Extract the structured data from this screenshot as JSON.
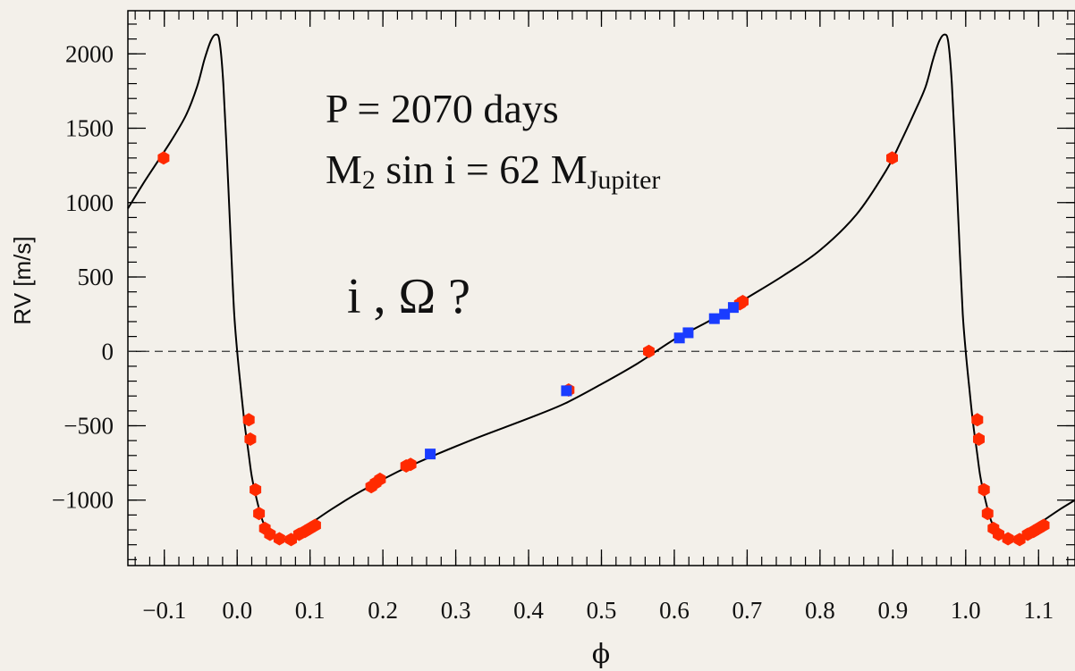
{
  "chart_data": {
    "type": "scatter",
    "xlabel": "ϕ",
    "ylabel": "RV [m/s]",
    "xlim": [
      -0.15,
      1.15
    ],
    "ylim": [
      -1440,
      2290
    ],
    "x_ticks": [
      "−0.1",
      "0.0",
      "0.1",
      "0.2",
      "0.3",
      "0.4",
      "0.5",
      "0.6",
      "0.7",
      "0.8",
      "0.9",
      "1.0",
      "1.1"
    ],
    "x_tick_values": [
      -0.1,
      0.0,
      0.1,
      0.2,
      0.3,
      0.4,
      0.5,
      0.6,
      0.7,
      0.8,
      0.9,
      1.0,
      1.1
    ],
    "y_ticks": [
      "−1000",
      "−500",
      "0",
      "500",
      "1000",
      "1500",
      "2000"
    ],
    "y_tick_values": [
      -1000,
      -500,
      0,
      500,
      1000,
      1500,
      2000
    ],
    "zero_line": true,
    "grid": false,
    "annotations": {
      "period": "P = 2070 days",
      "mass_prefix": "M",
      "mass_sub": "2",
      "mass_mid": " sin i = 62 M",
      "mass_unit_sub": "Jupiter",
      "question": "i , Ω ?"
    },
    "colors": {
      "series_red": "#ff2a00",
      "series_blue": "#1a3cff",
      "curve": "#000000"
    },
    "model_curve": {
      "name": "",
      "points": [
        [
          -0.15,
          960
        ],
        [
          -0.13,
          1120
        ],
        [
          -0.11,
          1270
        ],
        [
          -0.09,
          1420
        ],
        [
          -0.07,
          1590
        ],
        [
          -0.055,
          1780
        ],
        [
          -0.045,
          1960
        ],
        [
          -0.036,
          2090
        ],
        [
          -0.029,
          2130
        ],
        [
          -0.024,
          2080
        ],
        [
          -0.019,
          1800
        ],
        [
          -0.013,
          1200
        ],
        [
          -0.008,
          650
        ],
        [
          -0.004,
          250
        ],
        [
          0.0,
          0
        ],
        [
          0.005,
          -250
        ],
        [
          0.01,
          -480
        ],
        [
          0.015,
          -660
        ],
        [
          0.02,
          -840
        ],
        [
          0.027,
          -1000
        ],
        [
          0.035,
          -1140
        ],
        [
          0.045,
          -1230
        ],
        [
          0.057,
          -1260
        ],
        [
          0.07,
          -1260
        ],
        [
          0.085,
          -1215
        ],
        [
          0.1,
          -1160
        ],
        [
          0.13,
          -1060
        ],
        [
          0.17,
          -940
        ],
        [
          0.22,
          -810
        ],
        [
          0.27,
          -700
        ],
        [
          0.33,
          -580
        ],
        [
          0.4,
          -450
        ],
        [
          0.45,
          -350
        ],
        [
          0.5,
          -220
        ],
        [
          0.55,
          -80
        ],
        [
          0.6,
          80
        ],
        [
          0.65,
          210
        ],
        [
          0.7,
          360
        ],
        [
          0.75,
          510
        ],
        [
          0.8,
          680
        ],
        [
          0.85,
          920
        ],
        [
          0.89,
          1210
        ],
        [
          0.91,
          1400
        ],
        [
          0.93,
          1610
        ],
        [
          0.945,
          1780
        ],
        [
          0.955,
          1960
        ],
        [
          0.964,
          2090
        ],
        [
          0.971,
          2130
        ],
        [
          0.976,
          2080
        ],
        [
          0.981,
          1800
        ],
        [
          0.987,
          1200
        ],
        [
          0.992,
          650
        ],
        [
          0.996,
          250
        ],
        [
          1.0,
          0
        ],
        [
          1.005,
          -250
        ],
        [
          1.01,
          -480
        ],
        [
          1.015,
          -660
        ],
        [
          1.02,
          -840
        ],
        [
          1.027,
          -1000
        ],
        [
          1.035,
          -1140
        ],
        [
          1.045,
          -1230
        ],
        [
          1.057,
          -1260
        ],
        [
          1.07,
          -1260
        ],
        [
          1.085,
          -1215
        ],
        [
          1.1,
          -1160
        ],
        [
          1.13,
          -1060
        ],
        [
          1.15,
          -1000
        ]
      ]
    },
    "series": [
      {
        "name": "",
        "marker": "hexagon",
        "color": "#ff2a00",
        "points": [
          [
            -0.101,
            1300
          ],
          [
            0.016,
            -460
          ],
          [
            0.018,
            -590
          ],
          [
            0.025,
            -930
          ],
          [
            0.03,
            -1090
          ],
          [
            0.038,
            -1190
          ],
          [
            0.045,
            -1230
          ],
          [
            0.058,
            -1260
          ],
          [
            0.074,
            -1265
          ],
          [
            0.085,
            -1230
          ],
          [
            0.093,
            -1210
          ],
          [
            0.1,
            -1190
          ],
          [
            0.107,
            -1170
          ],
          [
            0.184,
            -910
          ],
          [
            0.19,
            -885
          ],
          [
            0.196,
            -860
          ],
          [
            0.232,
            -770
          ],
          [
            0.238,
            -760
          ],
          [
            0.455,
            -260
          ],
          [
            0.565,
            0
          ],
          [
            0.69,
            320
          ],
          [
            0.694,
            335
          ],
          [
            0.899,
            1300
          ],
          [
            1.016,
            -460
          ],
          [
            1.018,
            -590
          ],
          [
            1.025,
            -930
          ],
          [
            1.03,
            -1090
          ],
          [
            1.038,
            -1190
          ],
          [
            1.045,
            -1230
          ],
          [
            1.058,
            -1260
          ],
          [
            1.074,
            -1265
          ],
          [
            1.085,
            -1230
          ],
          [
            1.093,
            -1210
          ],
          [
            1.1,
            -1190
          ],
          [
            1.107,
            -1170
          ]
        ]
      },
      {
        "name": "",
        "marker": "square",
        "color": "#1a3cff",
        "points": [
          [
            0.265,
            -690
          ],
          [
            0.452,
            -265
          ],
          [
            0.607,
            90
          ],
          [
            0.619,
            125
          ],
          [
            0.655,
            220
          ],
          [
            0.669,
            250
          ],
          [
            0.681,
            295
          ]
        ]
      }
    ]
  }
}
